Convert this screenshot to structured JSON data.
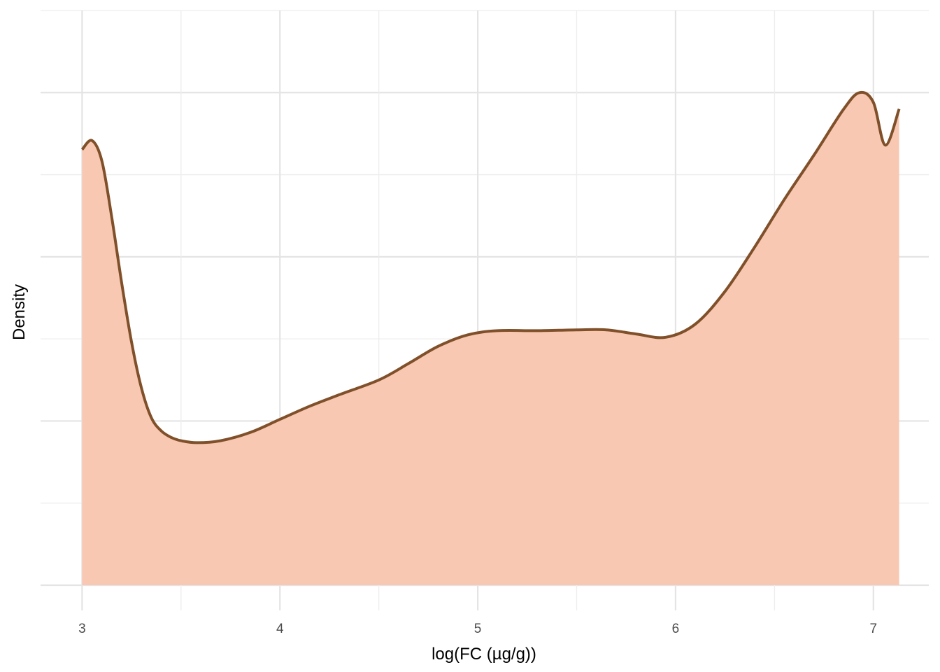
{
  "chart_data": {
    "type": "area",
    "title": "",
    "xlabel": "log(FC (µg/g))",
    "ylabel": "Density",
    "xlim": [
      2.79,
      7.28
    ],
    "ylim": [
      0,
      0.35
    ],
    "x_ticks": [
      3,
      4,
      5,
      6,
      7
    ],
    "x_tick_labels": [
      "3",
      "4",
      "5",
      "6",
      "7"
    ],
    "y_tick_labels_shown": false,
    "grid": true,
    "legend": "none",
    "series": [
      {
        "x": [
          3.0,
          3.05,
          3.1,
          3.15,
          3.2,
          3.25,
          3.3,
          3.35,
          3.4,
          3.45,
          3.5,
          3.58,
          3.7,
          3.85,
          4.0,
          4.15,
          4.3,
          4.5,
          4.65,
          4.8,
          4.95,
          5.1,
          5.3,
          5.5,
          5.65,
          5.8,
          5.95,
          6.1,
          6.25,
          6.4,
          6.55,
          6.7,
          6.85,
          6.93,
          7.0,
          7.06,
          7.13
        ],
        "y": [
          0.2653,
          0.2708,
          0.2583,
          0.224,
          0.184,
          0.148,
          0.12,
          0.102,
          0.094,
          0.09,
          0.088,
          0.0868,
          0.088,
          0.093,
          0.101,
          0.109,
          0.116,
          0.125,
          0.135,
          0.1455,
          0.1525,
          0.155,
          0.155,
          0.1555,
          0.1555,
          0.153,
          0.151,
          0.159,
          0.179,
          0.206,
          0.235,
          0.262,
          0.29,
          0.3,
          0.294,
          0.268,
          0.29
        ]
      }
    ],
    "colors": {
      "fill": "#f8c6b0",
      "line": "#80502a"
    }
  }
}
